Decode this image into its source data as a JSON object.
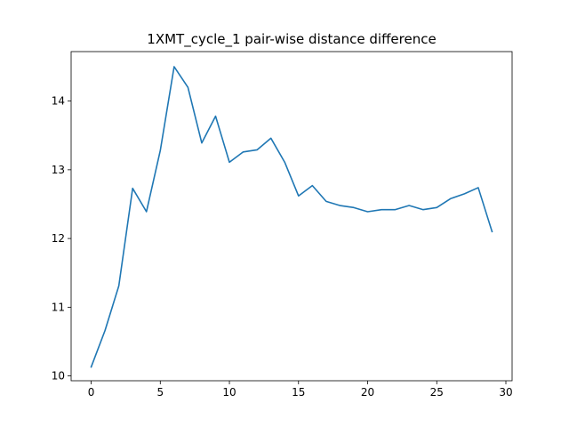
{
  "chart_data": {
    "type": "line",
    "title": "1XMT_cycle_1 pair-wise distance difference",
    "xlabel": "",
    "ylabel": "",
    "xlim": [
      -1.45,
      30.45
    ],
    "ylim": [
      9.93,
      14.72
    ],
    "xticks": [
      0,
      5,
      10,
      15,
      20,
      25,
      30
    ],
    "yticks": [
      10,
      11,
      12,
      13,
      14
    ],
    "grid": false,
    "line_color": "#1f77b4",
    "series": [
      {
        "x": [
          0,
          1,
          2,
          3,
          4,
          5,
          6,
          7,
          8,
          9,
          10,
          11,
          12,
          13,
          14,
          15,
          16,
          17,
          18,
          19,
          20,
          21,
          22,
          23,
          24,
          25,
          26,
          27,
          28,
          29
        ],
        "values": [
          10.13,
          10.66,
          11.31,
          12.73,
          12.39,
          13.28,
          14.5,
          14.2,
          13.39,
          13.78,
          13.11,
          13.26,
          13.29,
          13.46,
          13.11,
          12.62,
          12.77,
          12.54,
          12.48,
          12.45,
          12.39,
          12.42,
          12.42,
          12.48,
          12.42,
          12.45,
          12.58,
          12.65,
          12.74,
          12.1
        ]
      }
    ]
  }
}
